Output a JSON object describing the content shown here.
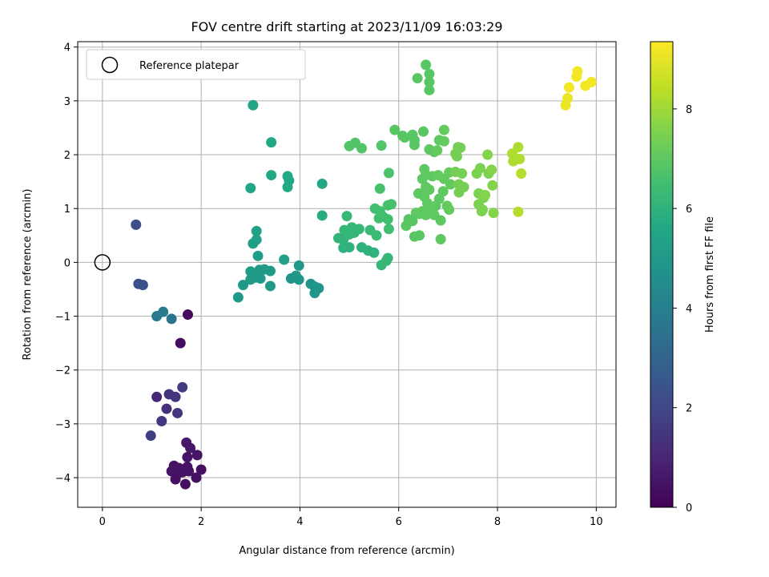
{
  "chart_data": {
    "type": "scatter",
    "title": "FOV centre drift starting at 2023/11/09 16:03:29",
    "xlabel": "Angular distance from reference (arcmin)",
    "ylabel": "Rotation from reference (arcmin)",
    "xlim": [
      -0.5,
      10.4
    ],
    "ylim": [
      -4.55,
      4.1
    ],
    "xticks": [
      0,
      2,
      4,
      6,
      8,
      10
    ],
    "yticks": [
      -4,
      -3,
      -2,
      -1,
      0,
      1,
      2,
      3,
      4
    ],
    "grid": true,
    "legend": {
      "placement": "top-left",
      "entries": [
        "Reference platepar"
      ]
    },
    "reference_point": {
      "x": 0,
      "y": 0,
      "marker": "hollow-circle"
    },
    "colorbar": {
      "label": "Hours from first FF file",
      "range": [
        0,
        9.35
      ],
      "ticks": [
        0,
        2,
        4,
        6,
        8
      ],
      "colormap": "viridis"
    },
    "points": [
      [
        1.73,
        -0.97,
        0.2
      ],
      [
        1.58,
        -1.5,
        0.3
      ],
      [
        1.7,
        -3.35,
        0.6
      ],
      [
        1.78,
        -3.45,
        0.6
      ],
      [
        1.92,
        -3.58,
        0.5
      ],
      [
        1.72,
        -3.62,
        0.5
      ],
      [
        1.45,
        -3.78,
        0.4
      ],
      [
        1.72,
        -3.8,
        0.5
      ],
      [
        1.55,
        -3.82,
        0.5
      ],
      [
        1.4,
        -3.88,
        0.5
      ],
      [
        1.62,
        -3.9,
        0.5
      ],
      [
        2.0,
        -3.85,
        0.4
      ],
      [
        1.75,
        -3.88,
        0.5
      ],
      [
        1.5,
        -3.95,
        0.5
      ],
      [
        1.9,
        -4.0,
        0.4
      ],
      [
        1.48,
        -4.03,
        0.4
      ],
      [
        1.68,
        -4.12,
        0.4
      ],
      [
        1.1,
        -2.5,
        1.0
      ],
      [
        1.35,
        -2.45,
        1.4
      ],
      [
        1.48,
        -2.5,
        1.4
      ],
      [
        1.3,
        -2.72,
        1.3
      ],
      [
        1.52,
        -2.8,
        1.5
      ],
      [
        1.2,
        -2.95,
        1.5
      ],
      [
        1.62,
        -2.32,
        1.6
      ],
      [
        0.98,
        -3.22,
        1.7
      ],
      [
        0.68,
        0.7,
        2.2
      ],
      [
        0.73,
        -0.4,
        2.3
      ],
      [
        0.82,
        -0.42,
        2.3
      ],
      [
        1.1,
        -1.0,
        3.8
      ],
      [
        1.23,
        -0.92,
        3.8
      ],
      [
        1.4,
        -1.05,
        3.6
      ],
      [
        3.05,
        2.92,
        5.5
      ],
      [
        3.42,
        2.23,
        5.6
      ],
      [
        3.0,
        1.38,
        5.5
      ],
      [
        3.42,
        1.62,
        5.6
      ],
      [
        3.75,
        1.6,
        5.6
      ],
      [
        3.78,
        1.52,
        5.6
      ],
      [
        3.75,
        1.4,
        5.6
      ],
      [
        4.45,
        1.46,
        5.6
      ],
      [
        4.45,
        0.87,
        5.8
      ],
      [
        3.12,
        0.58,
        5.3
      ],
      [
        3.12,
        0.42,
        5.3
      ],
      [
        3.05,
        0.35,
        5.2
      ],
      [
        3.15,
        0.12,
        5.2
      ],
      [
        3.0,
        -0.17,
        5.1
      ],
      [
        3.18,
        -0.14,
        5.1
      ],
      [
        3.28,
        -0.13,
        5.1
      ],
      [
        3.4,
        -0.16,
        5.1
      ],
      [
        3.1,
        -0.28,
        5.1
      ],
      [
        3.0,
        -0.32,
        5.1
      ],
      [
        3.2,
        -0.3,
        5.1
      ],
      [
        2.85,
        -0.42,
        5.0
      ],
      [
        3.4,
        -0.44,
        5.0
      ],
      [
        2.75,
        -0.65,
        5.0
      ],
      [
        3.68,
        0.05,
        5.3
      ],
      [
        3.98,
        -0.06,
        4.9
      ],
      [
        3.92,
        -0.25,
        4.9
      ],
      [
        3.82,
        -0.3,
        4.9
      ],
      [
        3.98,
        -0.32,
        4.9
      ],
      [
        4.22,
        -0.4,
        4.8
      ],
      [
        4.3,
        -0.45,
        4.8
      ],
      [
        4.38,
        -0.48,
        4.8
      ],
      [
        4.3,
        -0.57,
        4.8
      ],
      [
        4.95,
        0.86,
        6.2
      ],
      [
        4.9,
        0.6,
        6.2
      ],
      [
        5.05,
        0.65,
        6.2
      ],
      [
        5.2,
        0.62,
        6.2
      ],
      [
        5.1,
        0.55,
        6.2
      ],
      [
        4.78,
        0.45,
        6.1
      ],
      [
        4.88,
        0.42,
        6.1
      ],
      [
        5.0,
        0.52,
        6.2
      ],
      [
        5.42,
        0.6,
        6.3
      ],
      [
        5.55,
        0.5,
        6.3
      ],
      [
        5.52,
        1.0,
        6.5
      ],
      [
        5.62,
        0.95,
        6.5
      ],
      [
        5.68,
        0.85,
        6.5
      ],
      [
        5.78,
        0.8,
        6.5
      ],
      [
        5.6,
        0.82,
        6.5
      ],
      [
        5.8,
        0.62,
        6.5
      ],
      [
        4.88,
        0.27,
        6.0
      ],
      [
        5.0,
        0.28,
        6.0
      ],
      [
        5.25,
        0.28,
        6.0
      ],
      [
        5.38,
        0.22,
        6.0
      ],
      [
        5.5,
        0.18,
        6.0
      ],
      [
        5.78,
        0.08,
        6.2
      ],
      [
        5.75,
        0.03,
        6.2
      ],
      [
        5.65,
        -0.05,
        6.2
      ],
      [
        5.62,
        1.37,
        6.6
      ],
      [
        5.8,
        1.66,
        6.7
      ],
      [
        5.78,
        1.06,
        6.6
      ],
      [
        5.85,
        1.08,
        6.6
      ],
      [
        5.0,
        2.16,
        6.8
      ],
      [
        5.12,
        2.22,
        6.8
      ],
      [
        5.25,
        2.12,
        6.8
      ],
      [
        5.65,
        2.17,
        6.8
      ],
      [
        5.92,
        2.46,
        6.9
      ],
      [
        6.08,
        2.35,
        6.9
      ],
      [
        6.28,
        2.37,
        6.9
      ],
      [
        6.12,
        2.32,
        6.9
      ],
      [
        6.32,
        2.27,
        6.9
      ],
      [
        6.32,
        2.18,
        6.9
      ],
      [
        6.5,
        2.43,
        6.9
      ],
      [
        6.38,
        3.42,
        6.9
      ],
      [
        6.55,
        3.67,
        6.9
      ],
      [
        6.62,
        3.5,
        6.9
      ],
      [
        6.62,
        3.35,
        6.9
      ],
      [
        6.62,
        3.2,
        6.9
      ],
      [
        6.52,
        1.73,
        7.0
      ],
      [
        6.55,
        1.62,
        7.0
      ],
      [
        6.62,
        2.1,
        7.0
      ],
      [
        6.72,
        2.05,
        7.0
      ],
      [
        6.82,
        2.27,
        7.0
      ],
      [
        6.92,
        2.46,
        7.1
      ],
      [
        6.92,
        2.25,
        7.1
      ],
      [
        6.78,
        2.08,
        7.1
      ],
      [
        6.48,
        1.55,
        7.0
      ],
      [
        6.55,
        1.4,
        7.0
      ],
      [
        6.62,
        1.35,
        7.0
      ],
      [
        6.68,
        1.6,
        7.0
      ],
      [
        6.8,
        1.62,
        7.1
      ],
      [
        6.92,
        1.55,
        7.1
      ],
      [
        7.02,
        1.67,
        7.1
      ],
      [
        7.05,
        1.45,
        7.1
      ],
      [
        6.4,
        1.28,
        7.0
      ],
      [
        6.52,
        1.22,
        7.0
      ],
      [
        6.58,
        1.1,
        7.0
      ],
      [
        6.62,
        1.02,
        7.0
      ],
      [
        6.75,
        1.05,
        7.0
      ],
      [
        6.82,
        1.18,
        7.0
      ],
      [
        6.9,
        1.32,
        7.0
      ],
      [
        6.98,
        1.05,
        7.1
      ],
      [
        6.48,
        0.95,
        7.0
      ],
      [
        6.55,
        0.88,
        7.0
      ],
      [
        6.62,
        0.95,
        7.0
      ],
      [
        6.72,
        0.88,
        7.0
      ],
      [
        6.85,
        0.78,
        7.0
      ],
      [
        7.02,
        0.98,
        7.1
      ],
      [
        6.35,
        0.92,
        7.0
      ],
      [
        6.42,
        0.9,
        7.0
      ],
      [
        6.15,
        0.68,
        6.9
      ],
      [
        6.2,
        0.8,
        6.9
      ],
      [
        6.28,
        0.77,
        6.9
      ],
      [
        6.32,
        0.48,
        6.9
      ],
      [
        6.42,
        0.5,
        6.9
      ],
      [
        6.85,
        0.43,
        7.0
      ],
      [
        7.15,
        2.02,
        7.4
      ],
      [
        7.2,
        2.14,
        7.4
      ],
      [
        7.25,
        2.13,
        7.4
      ],
      [
        7.18,
        1.97,
        7.4
      ],
      [
        7.15,
        1.68,
        7.4
      ],
      [
        7.28,
        1.65,
        7.4
      ],
      [
        7.22,
        1.45,
        7.4
      ],
      [
        7.32,
        1.4,
        7.4
      ],
      [
        7.22,
        1.3,
        7.4
      ],
      [
        7.58,
        1.65,
        7.5
      ],
      [
        7.65,
        1.75,
        7.5
      ],
      [
        7.82,
        1.65,
        7.5
      ],
      [
        7.62,
        1.28,
        7.5
      ],
      [
        7.72,
        1.2,
        7.5
      ],
      [
        7.9,
        1.43,
        7.6
      ],
      [
        7.88,
        1.72,
        7.6
      ],
      [
        7.62,
        1.08,
        7.5
      ],
      [
        7.7,
        0.98,
        7.5
      ],
      [
        7.68,
        0.95,
        7.5
      ],
      [
        7.92,
        0.92,
        7.6
      ],
      [
        7.8,
        2.0,
        7.6
      ],
      [
        7.75,
        1.25,
        7.6
      ],
      [
        8.3,
        2.02,
        8.2
      ],
      [
        8.42,
        2.14,
        8.2
      ],
      [
        8.32,
        1.88,
        8.2
      ],
      [
        8.45,
        1.92,
        8.2
      ],
      [
        8.48,
        1.65,
        8.3
      ],
      [
        8.42,
        0.94,
        8.3
      ],
      [
        9.62,
        3.55,
        9.2
      ],
      [
        9.6,
        3.45,
        9.2
      ],
      [
        9.45,
        3.25,
        9.2
      ],
      [
        9.78,
        3.28,
        9.2
      ],
      [
        9.9,
        3.35,
        9.2
      ],
      [
        9.42,
        3.05,
        9.1
      ],
      [
        9.38,
        2.92,
        9.1
      ]
    ]
  }
}
